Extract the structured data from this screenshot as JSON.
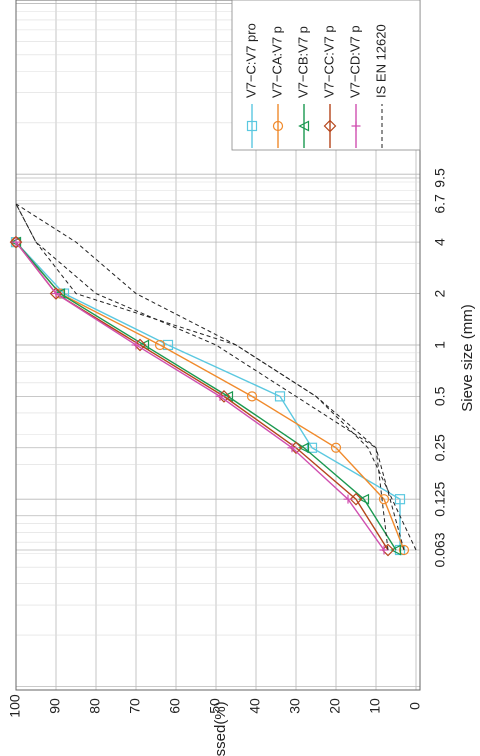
{
  "chart_data": {
    "type": "line",
    "xlabel": "Sieve size (mm)",
    "ylabel": "Passed(%)",
    "x_scale": "log",
    "xlim": [
      0.063,
      9.5
    ],
    "ylim": [
      0,
      100
    ],
    "grid": true,
    "legend_position": "top-right",
    "x_ticks": [
      {
        "value": 0.063,
        "label": "0.063"
      },
      {
        "value": 0.125,
        "label": "0.125"
      },
      {
        "value": 0.25,
        "label": "0.25"
      },
      {
        "value": 0.5,
        "label": "0.5"
      },
      {
        "value": 1,
        "label": "1"
      },
      {
        "value": 2,
        "label": "2"
      },
      {
        "value": 4,
        "label": "4"
      },
      {
        "value": 6.7,
        "label": "6.7"
      },
      {
        "value": 9.5,
        "label": "9.5"
      }
    ],
    "y_ticks": [
      0,
      10,
      20,
      30,
      40,
      50,
      60,
      70,
      80,
      90,
      100
    ],
    "series": [
      {
        "name": "V7−C:V7 pro",
        "color": "#5bc8e0",
        "marker": "square",
        "dash": "solid",
        "x": [
          0.063,
          0.125,
          0.25,
          0.5,
          1,
          2,
          4
        ],
        "y": [
          4,
          4,
          26,
          34,
          62,
          88,
          100
        ]
      },
      {
        "name": "V7−CA:V7 p",
        "color": "#f08a2c",
        "marker": "circle",
        "dash": "solid",
        "x": [
          0.063,
          0.125,
          0.25,
          0.5,
          1,
          2,
          4
        ],
        "y": [
          3,
          8,
          20,
          41,
          64,
          89,
          100
        ]
      },
      {
        "name": "V7−CB:V7 p",
        "color": "#1a9850",
        "marker": "triangle",
        "dash": "solid",
        "x": [
          0.063,
          0.125,
          0.25,
          0.5,
          1,
          2,
          4
        ],
        "y": [
          5,
          13,
          28,
          47,
          68,
          89,
          100
        ]
      },
      {
        "name": "V7−CC:V7 p",
        "color": "#b5451b",
        "marker": "diamond",
        "dash": "solid",
        "x": [
          0.063,
          0.125,
          0.25,
          0.5,
          1,
          2,
          4
        ],
        "y": [
          7,
          15,
          30,
          48,
          69,
          90,
          100
        ]
      },
      {
        "name": "V7−CD:V7 p",
        "color": "#d04fb0",
        "marker": "plus",
        "dash": "solid",
        "x": [
          0.063,
          0.125,
          0.25,
          0.5,
          1,
          2,
          4
        ],
        "y": [
          8,
          17,
          31,
          49,
          70,
          90,
          100
        ]
      },
      {
        "name": "IS EN 12620",
        "color": "#222222",
        "marker": "none",
        "dash": "dashed",
        "x": [
          0.063,
          0.25,
          0.5,
          1,
          2,
          4,
          6.7
        ],
        "y": [
          0,
          12,
          25,
          45,
          85,
          95,
          100
        ]
      },
      {
        "name": "",
        "color": "#222222",
        "marker": "none",
        "dash": "dashed",
        "x": [
          0.063,
          0.25,
          0.5,
          1,
          2,
          4,
          6.7
        ],
        "y": [
          3,
          10,
          25,
          45,
          70,
          85,
          100
        ]
      },
      {
        "name": "",
        "color": "#222222",
        "marker": "none",
        "dash": "dashed",
        "x": [
          0.063,
          0.25,
          0.5,
          1,
          2,
          4,
          6.7
        ],
        "y": [
          7,
          10,
          30,
          50,
          80,
          95,
          100
        ]
      }
    ]
  }
}
